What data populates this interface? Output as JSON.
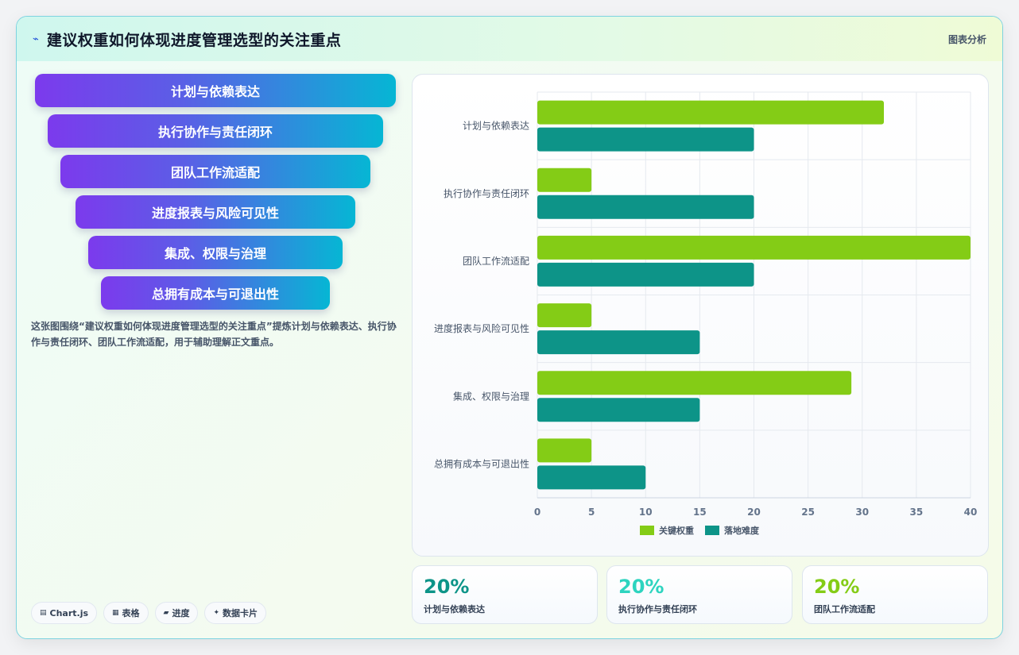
{
  "header": {
    "title": "建议权重如何体现进度管理选型的关注重点",
    "tag": "图表分析",
    "icon": "sparkle-icon"
  },
  "funnel": {
    "items": [
      "计划与依赖表达",
      "执行协作与责任闭环",
      "团队工作流适配",
      "进度报表与风险可见性",
      "集成、权限与治理",
      "总拥有成本与可退出性"
    ]
  },
  "description": "这张图围绕“建议权重如何体现进度管理选型的关注重点”提炼计划与依赖表达、执行协作与责任闭环、团队工作流适配，用于辅助理解正文重点。",
  "chips": [
    {
      "icon": "chart-icon",
      "label": "Chart.js"
    },
    {
      "icon": "table-icon",
      "label": "表格"
    },
    {
      "icon": "progress-icon",
      "label": "进度"
    },
    {
      "icon": "card-icon",
      "label": "数据卡片"
    }
  ],
  "stats": [
    {
      "value": "20%",
      "label": "计划与依赖表达",
      "color": "#0d9488"
    },
    {
      "value": "20%",
      "label": "执行协作与责任闭环",
      "color": "#2dd4bf"
    },
    {
      "value": "20%",
      "label": "团队工作流适配",
      "color": "#84cc16"
    }
  ],
  "chart_data": {
    "type": "bar",
    "orientation": "horizontal",
    "categories": [
      "计划与依赖表达",
      "执行协作与责任闭环",
      "团队工作流适配",
      "进度报表与风险可见性",
      "集成、权限与治理",
      "总拥有成本与可退出性"
    ],
    "series": [
      {
        "name": "关键权重",
        "values": [
          32,
          5,
          40,
          5,
          29,
          5
        ],
        "color": "#84cc16"
      },
      {
        "name": "落地难度",
        "values": [
          20,
          20,
          20,
          15,
          15,
          10
        ],
        "color": "#0d9488"
      }
    ],
    "xlim": [
      0,
      40
    ],
    "xticks": [
      0,
      5,
      10,
      15,
      20,
      25,
      30,
      35,
      40
    ],
    "grid": true,
    "legend": "bottom"
  }
}
